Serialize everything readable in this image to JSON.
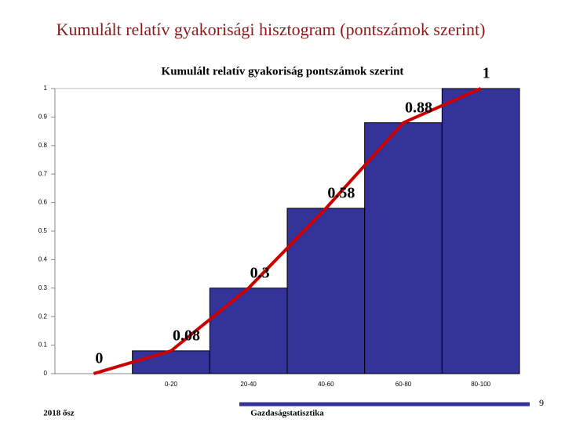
{
  "slide": {
    "title": "Kumulált relatív gyakorisági hisztogram (pontszámok szerint)",
    "footer_left": "2018 ősz",
    "footer_center": "Gazdaságstatisztika",
    "page_number": "9"
  },
  "chart_data": {
    "type": "bar",
    "title": "Kumulált relatív gyakoriság pontszámok szerint",
    "categories": [
      null,
      "0-20",
      "20-40",
      "40-60",
      "60-80",
      "80-100"
    ],
    "series": [
      {
        "type": "bar",
        "color": "#333399",
        "values": [
          null,
          0.08,
          0.3,
          0.58,
          0.88,
          1
        ]
      },
      {
        "type": "line",
        "color": "#cc0000",
        "values": [
          0,
          0.08,
          0.3,
          0.58,
          0.88,
          1
        ]
      }
    ],
    "ylim": [
      0,
      1
    ],
    "yticks": [
      0,
      0.1,
      0.2,
      0.3,
      0.4,
      0.5,
      0.6,
      0.7,
      0.8,
      0.9,
      1
    ],
    "grid": false
  }
}
